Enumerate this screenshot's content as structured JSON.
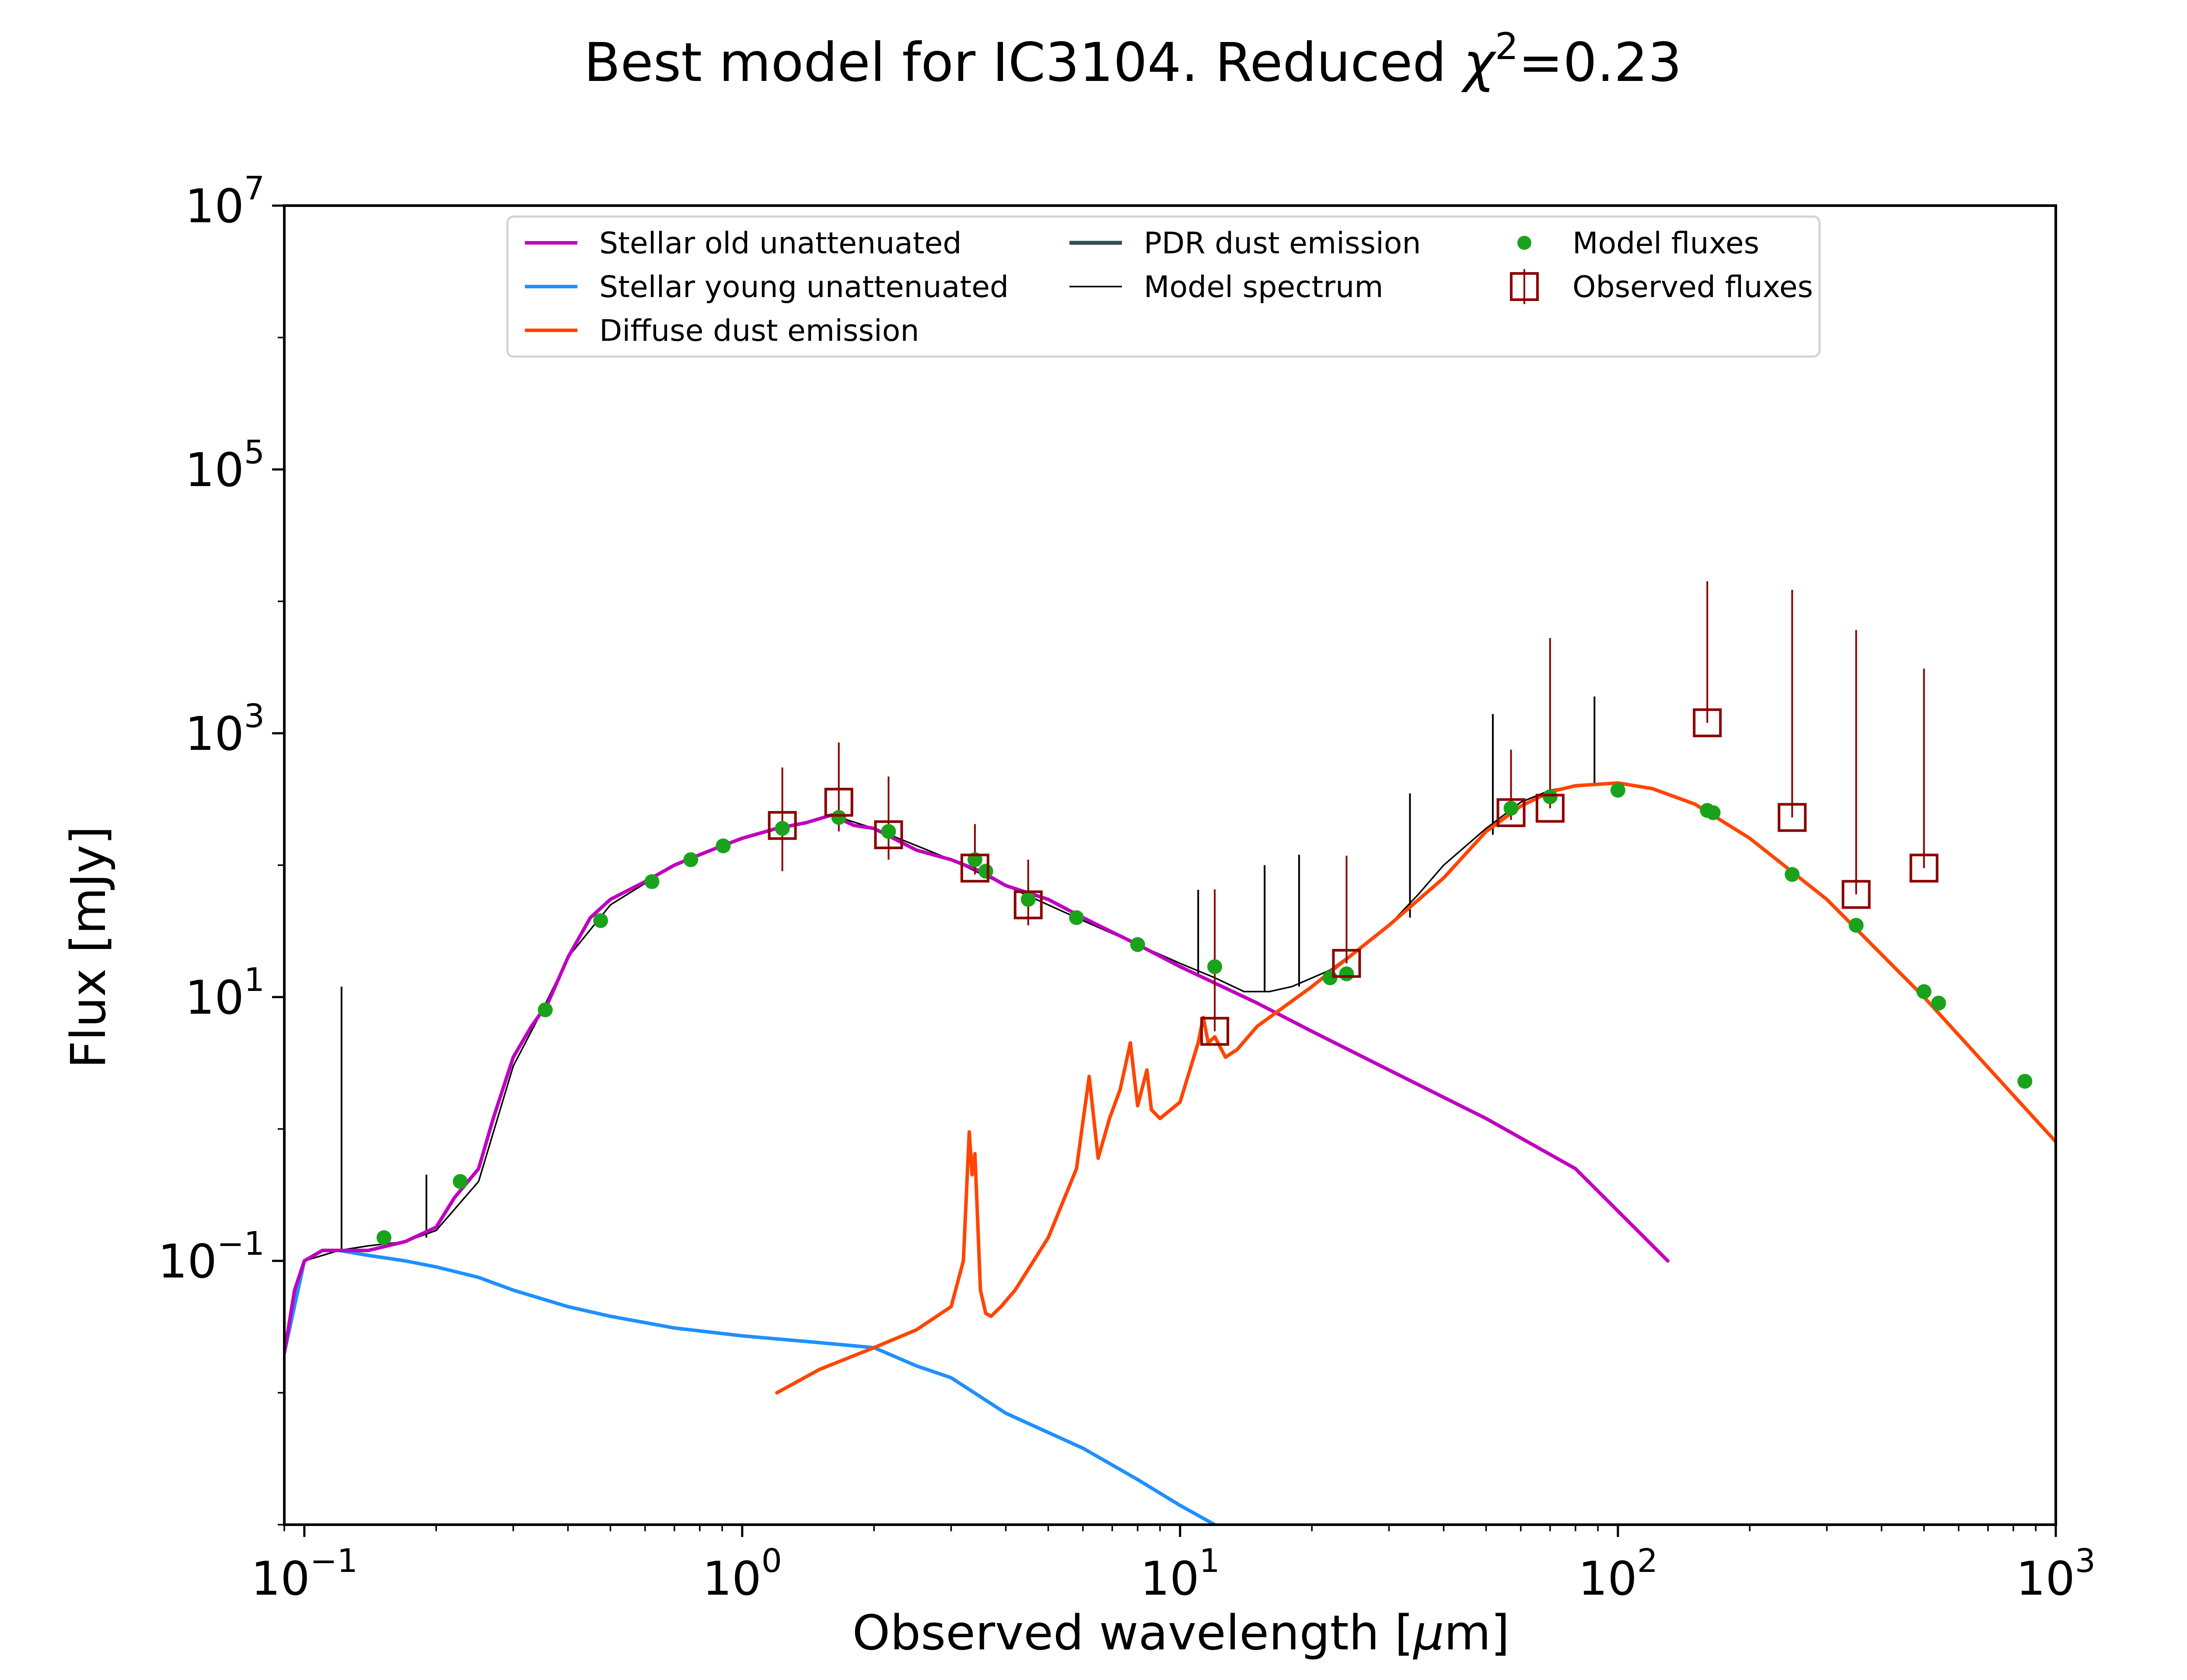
{
  "chart_data": {
    "type": "line",
    "title": "Best model for IC3104. Reduced χ²=0.23",
    "title_parts": {
      "prefix": "Best model for IC3104. Reduced ",
      "chi": "χ",
      "sup": "2",
      "suffix": "=0.23"
    },
    "xlabel": "Observed wavelength [μm]",
    "xlabel_parts": {
      "prefix": "Observed wavelength [",
      "mu": "μ",
      "suffix": "m]"
    },
    "ylabel": "Flux [mJy]",
    "xscale": "log",
    "yscale": "log",
    "xlim": [
      0.09,
      1000
    ],
    "ylim": [
      0.001,
      10000000
    ],
    "x_ticks": [
      {
        "value": 0.1,
        "base": "10",
        "exp": "−1"
      },
      {
        "value": 1,
        "base": "10",
        "exp": "0"
      },
      {
        "value": 10,
        "base": "10",
        "exp": "1"
      },
      {
        "value": 100,
        "base": "10",
        "exp": "2"
      },
      {
        "value": 1000,
        "base": "10",
        "exp": "3"
      }
    ],
    "y_ticks": [
      {
        "value": 0.1,
        "base": "10",
        "exp": "−1"
      },
      {
        "value": 10,
        "base": "10",
        "exp": "1"
      },
      {
        "value": 1000,
        "base": "10",
        "exp": "3"
      },
      {
        "value": 100000,
        "base": "10",
        "exp": "5"
      },
      {
        "value": 10000000,
        "base": "10",
        "exp": "7"
      }
    ],
    "legend_position": "top-center",
    "grid": false,
    "series": [
      {
        "name": "Stellar old unattenuated",
        "kind": "line",
        "color": "#bf00bf",
        "x": [
          0.09,
          0.095,
          0.1,
          0.11,
          0.12,
          0.14,
          0.17,
          0.2,
          0.22,
          0.25,
          0.27,
          0.3,
          0.33,
          0.36,
          0.4,
          0.45,
          0.5,
          0.6,
          0.7,
          0.8,
          0.9,
          1.0,
          1.2,
          1.4,
          1.6,
          1.8,
          2.0,
          2.5,
          3.0,
          3.5,
          4.0,
          5.0,
          6.0,
          8.0,
          10,
          15,
          20,
          30,
          50,
          80,
          130
        ],
        "y": [
          0.02,
          0.06,
          0.1,
          0.12,
          0.12,
          0.12,
          0.14,
          0.18,
          0.3,
          0.5,
          1.2,
          3.5,
          6.0,
          9.0,
          20,
          40,
          55,
          75,
          100,
          120,
          140,
          160,
          190,
          210,
          240,
          200,
          190,
          130,
          110,
          90,
          70,
          55,
          40,
          25,
          17,
          9,
          5.5,
          2.8,
          1.2,
          0.5,
          0.1
        ]
      },
      {
        "name": "Stellar young unattenuated",
        "kind": "line",
        "color": "#1e90ff",
        "x": [
          0.09,
          0.1,
          0.11,
          0.12,
          0.14,
          0.17,
          0.2,
          0.25,
          0.3,
          0.4,
          0.5,
          0.7,
          1.0,
          1.5,
          2.0,
          2.5,
          3.0,
          4.0,
          5.0,
          6.0,
          8.0,
          10,
          12
        ],
        "y": [
          0.02,
          0.1,
          0.12,
          0.12,
          0.11,
          0.1,
          0.09,
          0.075,
          0.06,
          0.045,
          0.038,
          0.031,
          0.027,
          0.024,
          0.022,
          0.016,
          0.013,
          0.007,
          0.005,
          0.0038,
          0.0022,
          0.0014,
          0.001
        ]
      },
      {
        "name": "Diffuse dust emission",
        "kind": "line",
        "color": "#ff4500",
        "x": [
          1.2,
          1.5,
          2.0,
          2.5,
          3.0,
          3.2,
          3.3,
          3.35,
          3.4,
          3.45,
          3.5,
          3.6,
          3.7,
          3.9,
          4.2,
          5.0,
          5.8,
          6.2,
          6.5,
          6.9,
          7.3,
          7.7,
          8.0,
          8.4,
          8.6,
          9.0,
          10,
          11,
          11.3,
          11.6,
          12,
          12.7,
          13.5,
          15,
          20,
          30,
          40,
          50,
          60,
          70,
          80,
          100,
          120,
          150,
          200,
          300,
          500,
          800,
          1000
        ],
        "y": [
          0.01,
          0.015,
          0.022,
          0.03,
          0.045,
          0.1,
          0.95,
          0.45,
          0.65,
          0.2,
          0.06,
          0.04,
          0.038,
          0.045,
          0.06,
          0.15,
          0.5,
          2.5,
          0.6,
          1.2,
          2.0,
          4.5,
          1.5,
          2.8,
          1.4,
          1.2,
          1.6,
          4.5,
          7.0,
          4.5,
          5.0,
          3.5,
          4.0,
          6.0,
          12,
          35,
          80,
          180,
          280,
          360,
          400,
          420,
          380,
          290,
          160,
          55,
          10,
          1.8,
          0.8
        ]
      },
      {
        "name": "PDR dust emission",
        "kind": "line",
        "color": "#2f4f4f",
        "x": [],
        "y": []
      },
      {
        "name": "Model spectrum",
        "kind": "line",
        "color": "#000000",
        "x": [
          0.09,
          0.1,
          0.12,
          0.14,
          0.17,
          0.2,
          0.25,
          0.3,
          0.35,
          0.4,
          0.5,
          0.7,
          1.0,
          1.6,
          2.0,
          3.0,
          4.0,
          6.0,
          8.0,
          10,
          12,
          14,
          16,
          18,
          22,
          25,
          30,
          35,
          40,
          50,
          60,
          70,
          80,
          100,
          120,
          150,
          200,
          300,
          500,
          800,
          1000
        ],
        "y": [
          0.02,
          0.1,
          0.12,
          0.13,
          0.14,
          0.17,
          0.4,
          3.0,
          8.0,
          20,
          50,
          100,
          160,
          240,
          190,
          110,
          70,
          38,
          25,
          18,
          14,
          11,
          11,
          12,
          16,
          22,
          35,
          60,
          100,
          190,
          300,
          370,
          400,
          420,
          380,
          290,
          160,
          55,
          10,
          1.8,
          0.8
        ]
      },
      {
        "name": "Model fluxes",
        "kind": "scatter",
        "color": "#1aa31a",
        "x": [
          0.152,
          0.227,
          0.355,
          0.475,
          0.622,
          0.763,
          0.905,
          1.235,
          1.662,
          2.159,
          3.4,
          3.6,
          4.5,
          5.8,
          8.0,
          12.0,
          22.0,
          24.0,
          57.0,
          70.0,
          100,
          160,
          165,
          250,
          350,
          500,
          540,
          850
        ],
        "y": [
          0.15,
          0.4,
          8.0,
          38,
          75,
          110,
          140,
          190,
          230,
          180,
          110,
          90,
          55,
          40,
          25,
          17,
          14,
          15,
          270,
          330,
          370,
          260,
          250,
          85,
          35,
          11,
          9.0,
          2.3
        ]
      },
      {
        "name": "Observed fluxes",
        "kind": "errorbar",
        "color": "#8b0000",
        "x": [
          1.235,
          1.662,
          2.159,
          3.4,
          4.5,
          12.0,
          24.0,
          57.0,
          70.0,
          160,
          250,
          350,
          500
        ],
        "y": [
          200,
          300,
          170,
          95,
          50,
          5.5,
          18,
          250,
          270,
          1200,
          230,
          60,
          95
        ],
        "yerr_low": [
          110,
          120,
          60,
          10,
          15,
          0.001,
          0.001,
          30,
          0.001,
          0.001,
          0.001,
          0.001,
          0.001
        ],
        "yerr_high": [
          350,
          550,
          300,
          110,
          60,
          60,
          100,
          500,
          5000,
          13000,
          12000,
          6000,
          3000
        ]
      }
    ],
    "spectral_lines": [
      {
        "x": 0.1216,
        "top": 12,
        "base": 0.12
      },
      {
        "x": 0.19,
        "top": 0.45,
        "base": 0.15
      },
      {
        "x": 11.0,
        "top": 65,
        "base": 15
      },
      {
        "x": 15.6,
        "top": 100,
        "base": 11
      },
      {
        "x": 18.7,
        "top": 120,
        "base": 12
      },
      {
        "x": 33.5,
        "top": 350,
        "base": 40
      },
      {
        "x": 51.8,
        "top": 1400,
        "base": 170
      },
      {
        "x": 88.4,
        "top": 1900,
        "base": 400
      }
    ]
  }
}
